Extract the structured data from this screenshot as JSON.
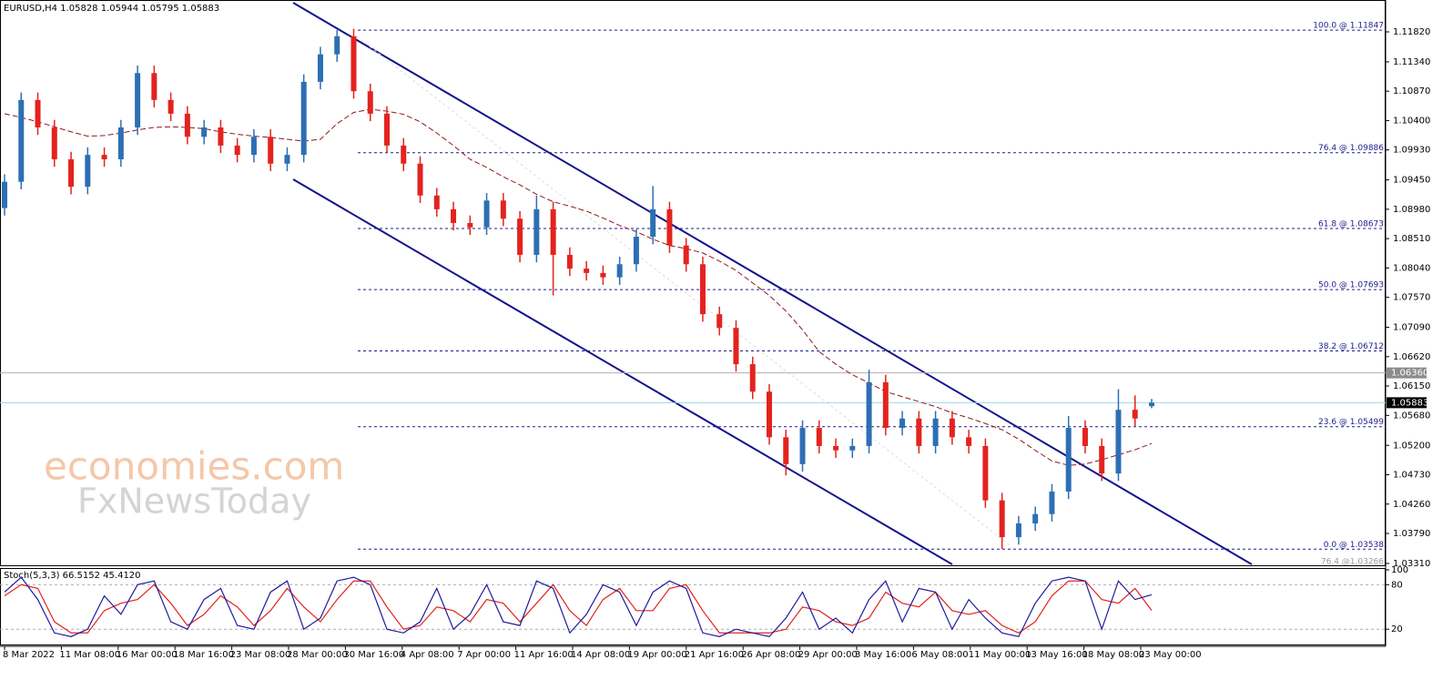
{
  "chart_data": {
    "type": "candlestick",
    "title": "EURUSD,H4  1.05828 1.05944 1.05795 1.05883",
    "up_color": "#2d6fb4",
    "down_color": "#e3231e",
    "ylim": [
      1.0328,
      1.1233
    ],
    "yticks": [
      {
        "value": 1.1182,
        "label": "1.11820"
      },
      {
        "value": 1.1134,
        "label": "1.11340"
      },
      {
        "value": 1.1087,
        "label": "1.10870"
      },
      {
        "value": 1.104,
        "label": "1.10400"
      },
      {
        "value": 1.0993,
        "label": "1.09930"
      },
      {
        "value": 1.0945,
        "label": "1.09450"
      },
      {
        "value": 1.0898,
        "label": "1.08980"
      },
      {
        "value": 1.0851,
        "label": "1.08510"
      },
      {
        "value": 1.0804,
        "label": "1.08040"
      },
      {
        "value": 1.0757,
        "label": "1.07570"
      },
      {
        "value": 1.0709,
        "label": "1.07090"
      },
      {
        "value": 1.0662,
        "label": "1.06620"
      },
      {
        "value": 1.0615,
        "label": "1.06150"
      },
      {
        "value": 1.0568,
        "label": "1.05680"
      },
      {
        "value": 1.052,
        "label": "1.05200"
      },
      {
        "value": 1.0473,
        "label": "1.04730"
      },
      {
        "value": 1.0426,
        "label": "1.04260"
      },
      {
        "value": 1.0379,
        "label": "1.03790"
      },
      {
        "value": 1.0331,
        "label": "1.03310"
      }
    ],
    "price_markers": [
      {
        "value": 1.0636,
        "label": "1.06360",
        "color": "#8c8c8c",
        "line_color": "#b0b0b0"
      },
      {
        "value": 1.05883,
        "label": "1.05883",
        "color": "#000000",
        "line_color": "#9fd8e8"
      }
    ],
    "fib_color": "#1c1c8c",
    "fib_levels": [
      {
        "value": 1.11847,
        "label": "100.0 @ 1.11847"
      },
      {
        "value": 1.09886,
        "label": "76.4 @ 1.09886"
      },
      {
        "value": 1.08673,
        "label": "61.8 @ 1.08673"
      },
      {
        "value": 1.07693,
        "label": "50.0 @ 1.07693"
      },
      {
        "value": 1.06712,
        "label": "38.2 @ 1.06712"
      },
      {
        "value": 1.05499,
        "label": "23.6 @ 1.05499"
      },
      {
        "value": 1.03538,
        "label": "0.0 @ 1.03538"
      },
      {
        "value": 1.03266,
        "label": "76.4 @1.03266"
      }
    ],
    "time_labels": [
      "8 Mar 2022",
      "11 Mar 08:00",
      "16 Mar 00:00",
      "18 Mar 16:00",
      "23 Mar 08:00",
      "28 Mar 00:00",
      "30 Mar 16:00",
      "4 Apr 08:00",
      "7 Apr 00:00",
      "11 Apr 16:00",
      "14 Apr 08:00",
      "19 Apr 00:00",
      "21 Apr 16:00",
      "26 Apr 08:00",
      "29 Apr 00:00",
      "3 May 16:00",
      "6 May 08:00",
      "11 May 00:00",
      "13 May 16:00",
      "18 May 08:00",
      "23 May 00:00"
    ],
    "open": [
      1.09,
      1.0942,
      1.1073,
      1.1029,
      1.0978,
      1.0934,
      1.0985,
      1.0978,
      1.1029,
      1.1116,
      1.1073,
      1.1051,
      1.1014,
      1.1029,
      1.1,
      1.0985,
      1.1014,
      1.0971,
      1.0985,
      1.1102,
      1.1146,
      1.1175,
      1.1087,
      1.1051,
      1.1,
      1.0971,
      1.092,
      1.0898,
      1.0876,
      1.0869,
      1.0912,
      1.0883,
      1.0825,
      1.0898,
      1.0825,
      1.0803,
      1.0796,
      1.0789,
      1.081,
      1.0854,
      1.0898,
      1.084,
      1.081,
      1.073,
      1.0708,
      1.065,
      1.0606,
      1.0533,
      1.049,
      1.0548,
      1.0519,
      1.0512,
      1.0519,
      1.0621,
      1.0548,
      1.0563,
      1.0519,
      1.0563,
      1.0533,
      1.0519,
      1.0432,
      1.0373,
      1.0395,
      1.041,
      1.0446,
      1.0548,
      1.0519,
      1.0475,
      1.0577,
      1.05828
    ],
    "high": [
      1.0954,
      1.1085,
      1.1085,
      1.1041,
      1.099,
      1.0997,
      1.0997,
      1.1041,
      1.1128,
      1.1128,
      1.1085,
      1.1063,
      1.1041,
      1.1041,
      1.1012,
      1.1026,
      1.1026,
      1.0997,
      1.1114,
      1.1158,
      1.1185,
      1.1187,
      1.1099,
      1.1063,
      1.1012,
      1.0983,
      1.0932,
      1.091,
      1.0888,
      1.0924,
      1.0924,
      1.0895,
      1.092,
      1.091,
      1.0837,
      1.0815,
      1.0808,
      1.0822,
      1.0866,
      1.0935,
      1.091,
      1.0852,
      1.0822,
      1.0742,
      1.072,
      1.0662,
      1.0618,
      1.0545,
      1.056,
      1.056,
      1.0531,
      1.0531,
      1.0641,
      1.0633,
      1.0575,
      1.0575,
      1.0575,
      1.0575,
      1.0545,
      1.0531,
      1.0444,
      1.0407,
      1.0422,
      1.0458,
      1.0567,
      1.056,
      1.0531,
      1.061,
      1.06,
      1.05944
    ],
    "low": [
      1.0888,
      1.093,
      1.1017,
      1.0966,
      1.0922,
      1.0922,
      1.0966,
      1.0966,
      1.1017,
      1.1061,
      1.1039,
      1.1002,
      1.1002,
      1.0988,
      1.0973,
      1.0973,
      1.0959,
      1.0959,
      1.0973,
      1.109,
      1.1134,
      1.1075,
      1.1039,
      1.0988,
      1.0959,
      1.0908,
      1.0886,
      1.0864,
      1.0857,
      1.0857,
      1.0871,
      1.0813,
      1.0813,
      1.076,
      1.0791,
      1.0784,
      1.0777,
      1.0777,
      1.0798,
      1.0842,
      1.0828,
      1.0798,
      1.0718,
      1.0696,
      1.0638,
      1.0594,
      1.0521,
      1.0472,
      1.0478,
      1.0507,
      1.05,
      1.05,
      1.0507,
      1.0536,
      1.0536,
      1.0507,
      1.0507,
      1.0521,
      1.0507,
      1.042,
      1.0354,
      1.0361,
      1.0383,
      1.0398,
      1.0434,
      1.0507,
      1.0463,
      1.0463,
      1.0551,
      1.05795
    ],
    "close": [
      1.0942,
      1.1073,
      1.1029,
      1.0978,
      1.0934,
      1.0985,
      1.0978,
      1.1029,
      1.1116,
      1.1073,
      1.1051,
      1.1014,
      1.1029,
      1.1,
      1.0985,
      1.1014,
      1.0971,
      1.0985,
      1.1102,
      1.1146,
      1.1175,
      1.1087,
      1.1051,
      1.1,
      1.0971,
      1.092,
      1.0898,
      1.0876,
      1.0869,
      1.0912,
      1.0883,
      1.0825,
      1.0898,
      1.0825,
      1.0803,
      1.0796,
      1.0789,
      1.081,
      1.0854,
      1.0898,
      1.084,
      1.081,
      1.073,
      1.0708,
      1.065,
      1.0606,
      1.0533,
      1.049,
      1.0548,
      1.0519,
      1.0512,
      1.0519,
      1.0621,
      1.0548,
      1.0563,
      1.0519,
      1.0563,
      1.0533,
      1.0519,
      1.0432,
      1.0373,
      1.0395,
      1.041,
      1.0446,
      1.0548,
      1.0519,
      1.0475,
      1.0577,
      1.0563,
      1.05883
    ],
    "ma_color": "#8b1a1a",
    "ma": [
      1.1051,
      1.1045,
      1.1038,
      1.103,
      1.1022,
      1.1015,
      1.1016,
      1.102,
      1.1025,
      1.1029,
      1.103,
      1.1029,
      1.1027,
      1.1022,
      1.1018,
      1.1015,
      1.1013,
      1.101,
      1.1007,
      1.101,
      1.1035,
      1.1053,
      1.1058,
      1.1055,
      1.105,
      1.1038,
      1.102,
      1.1,
      1.0978,
      1.0965,
      1.095,
      1.0937,
      1.0922,
      1.091,
      1.0903,
      1.0895,
      1.0884,
      1.0872,
      1.0862,
      1.085,
      1.084,
      1.0835,
      1.0828,
      1.0815,
      1.08,
      1.078,
      1.076,
      1.0735,
      1.0705,
      1.067,
      1.065,
      1.0633,
      1.062,
      1.0606,
      1.0598,
      1.059,
      1.0582,
      1.0572,
      1.0564,
      1.0555,
      1.0545,
      1.053,
      1.0512,
      1.0495,
      1.0488,
      1.049,
      1.0497,
      1.0505,
      1.0513,
      1.0523
    ],
    "stoch": {
      "title": "Stoch(5,3,3) 66.5152 45.4120",
      "ylim": [
        0,
        100
      ],
      "yticks": [
        100,
        80,
        20
      ],
      "levels": [
        80,
        20
      ],
      "main_color": "#1c1c9c",
      "signal_color": "#e3231e",
      "main": [
        70,
        90,
        60,
        15,
        10,
        20,
        65,
        40,
        80,
        85,
        30,
        20,
        60,
        75,
        25,
        20,
        70,
        85,
        20,
        35,
        85,
        90,
        80,
        20,
        15,
        30,
        75,
        20,
        40,
        80,
        30,
        25,
        85,
        75,
        15,
        40,
        80,
        70,
        25,
        70,
        85,
        75,
        15,
        10,
        20,
        15,
        10,
        35,
        70,
        20,
        35,
        15,
        60,
        85,
        30,
        75,
        70,
        20,
        60,
        35,
        15,
        10,
        55,
        85,
        90,
        85,
        20,
        85,
        60,
        66.5152
      ],
      "signal": [
        65,
        80,
        75,
        30,
        15,
        15,
        45,
        55,
        60,
        80,
        55,
        25,
        40,
        65,
        50,
        25,
        45,
        75,
        50,
        30,
        60,
        85,
        85,
        50,
        20,
        25,
        50,
        45,
        30,
        60,
        55,
        30,
        55,
        80,
        45,
        25,
        60,
        75,
        45,
        45,
        75,
        80,
        45,
        15,
        15,
        15,
        15,
        20,
        50,
        45,
        30,
        25,
        35,
        70,
        55,
        50,
        70,
        45,
        40,
        45,
        25,
        15,
        30,
        65,
        85,
        85,
        60,
        55,
        75,
        45.412
      ]
    },
    "annotations": [
      "economies.com",
      "FxNewsToday"
    ]
  }
}
